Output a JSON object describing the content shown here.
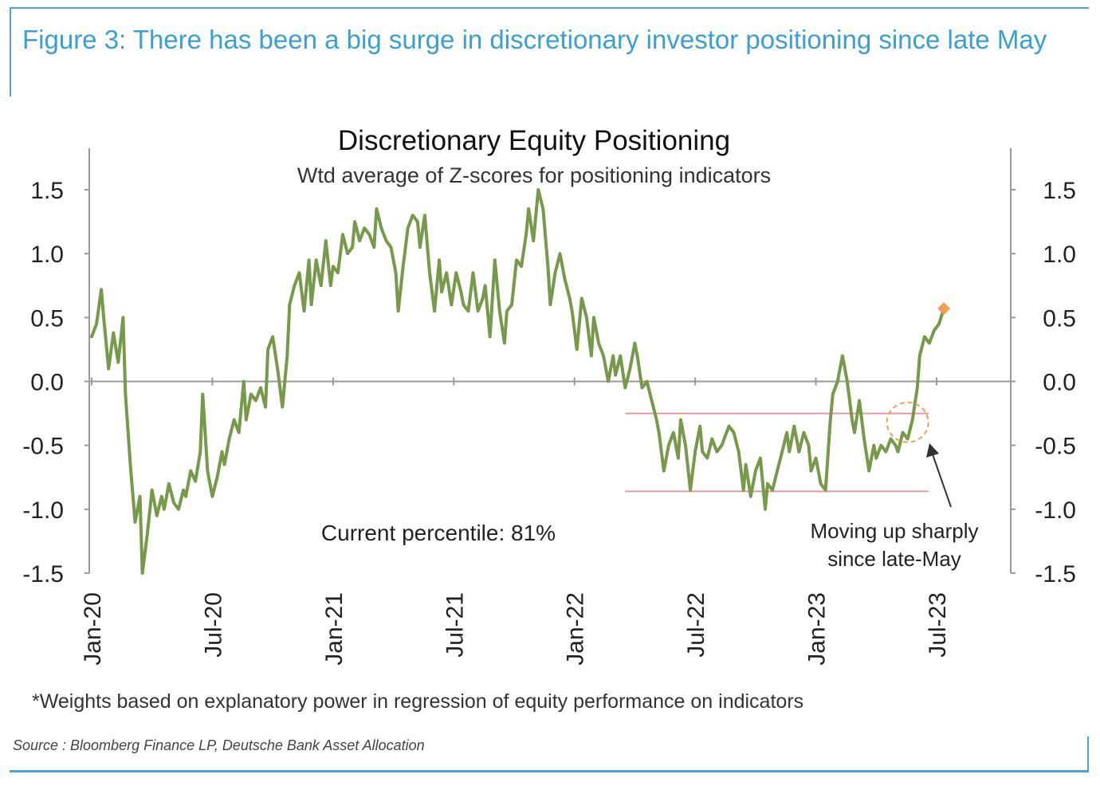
{
  "figure_title": "Figure 3: There has been a big surge in discretionary investor positioning since late May",
  "footnote": "*Weights based on explanatory power in regression of equity performance on indicators",
  "source": "Source : Bloomberg Finance LP, Deutsche Bank Asset Allocation",
  "colors": {
    "accent": "#3a9fd6",
    "line": "#76994a",
    "band": "#e39aa0",
    "marker": "#f0a050"
  },
  "chart_data": {
    "type": "line",
    "title": "Discretionary Equity Positioning",
    "subtitle": "Wtd average of Z-scores for positioning indicators",
    "ylim": [
      -1.5,
      1.5
    ],
    "yticks": [
      "1.5",
      "1.0",
      "0.5",
      "0.0",
      "-0.5",
      "-1.0",
      "-1.5"
    ],
    "ytick_values": [
      1.5,
      1.0,
      0.5,
      0.0,
      -0.5,
      -1.0,
      -1.5
    ],
    "xticks": [
      "Jan-20",
      "Jul-20",
      "Jan-21",
      "Jul-21",
      "Jan-22",
      "Jul-22",
      "Jan-23",
      "Jul-23"
    ],
    "xtick_values": [
      2020.0,
      2020.5,
      2021.0,
      2021.5,
      2022.0,
      2022.5,
      2023.0,
      2023.5
    ],
    "xlim": [
      2020.0,
      2023.5
    ],
    "dual_y_axis": true,
    "band_lines": [
      {
        "y": -0.25,
        "x_start": 2022.21,
        "x_end": 2023.5
      },
      {
        "y": -0.86,
        "x_start": 2022.21,
        "x_end": 2023.5
      }
    ],
    "annotations": [
      {
        "text": "Current percentile: 81%"
      },
      {
        "text_lines": [
          "Moving up sharply",
          "since  late-May"
        ]
      }
    ],
    "current_point": {
      "x": 2023.53,
      "y": 0.57
    },
    "highlight_circle": {
      "x": 2023.38,
      "y": -0.32
    },
    "series": [
      {
        "x": [
          2020.0,
          2020.02,
          2020.04,
          2020.05,
          2020.07,
          2020.09,
          2020.11,
          2020.13,
          2020.14,
          2020.16,
          2020.18,
          2020.2,
          2020.21,
          2020.23,
          2020.25,
          2020.27,
          2020.29,
          2020.3,
          2020.32,
          2020.34,
          2020.36,
          2020.38,
          2020.39,
          2020.41,
          2020.43,
          2020.45,
          2020.46,
          2020.48,
          2020.5,
          2020.52,
          2020.54,
          2020.55,
          2020.57,
          2020.59,
          2020.61,
          2020.63,
          2020.64,
          2020.66,
          2020.68,
          2020.7,
          2020.72,
          2020.73,
          2020.75,
          2020.77,
          2020.79,
          2020.81,
          2020.82,
          2020.84,
          2020.86,
          2020.88,
          2020.9,
          2020.91,
          2020.93,
          2020.95,
          2020.97,
          2020.99,
          2021.0,
          2021.02,
          2021.04,
          2021.06,
          2021.08,
          2021.09,
          2021.11,
          2021.13,
          2021.15,
          2021.17,
          2021.18,
          2021.2,
          2021.22,
          2021.24,
          2021.26,
          2021.27,
          2021.29,
          2021.31,
          2021.33,
          2021.35,
          2021.36,
          2021.38,
          2021.4,
          2021.42,
          2021.44,
          2021.45,
          2021.47,
          2021.49,
          2021.51,
          2021.53,
          2021.54,
          2021.56,
          2021.58,
          2021.6,
          2021.62,
          2021.63,
          2021.65,
          2021.67,
          2021.69,
          2021.71,
          2021.72,
          2021.74,
          2021.76,
          2021.78,
          2021.8,
          2021.81,
          2021.83,
          2021.85,
          2021.87,
          2021.89,
          2021.9,
          2021.92,
          2021.94,
          2021.96,
          2021.98,
          2021.99,
          2022.01,
          2022.03,
          2022.05,
          2022.07,
          2022.08,
          2022.1,
          2022.12,
          2022.14,
          2022.16,
          2022.17,
          2022.19,
          2022.21,
          2022.23,
          2022.25,
          2022.26,
          2022.28,
          2022.3,
          2022.32,
          2022.34,
          2022.35,
          2022.37,
          2022.39,
          2022.41,
          2022.43,
          2022.44,
          2022.46,
          2022.48,
          2022.5,
          2022.52,
          2022.53,
          2022.55,
          2022.57,
          2022.59,
          2022.61,
          2022.62,
          2022.64,
          2022.66,
          2022.68,
          2022.7,
          2022.71,
          2022.73,
          2022.75,
          2022.77,
          2022.79,
          2022.8,
          2022.82,
          2022.84,
          2022.86,
          2022.88,
          2022.89,
          2022.91,
          2022.93,
          2022.95,
          2022.97,
          2022.98,
          2023.0,
          2023.02,
          2023.04,
          2023.06,
          2023.07,
          2023.09,
          2023.11,
          2023.13,
          2023.15,
          2023.16,
          2023.18,
          2023.2,
          2023.22,
          2023.24,
          2023.25,
          2023.27,
          2023.29,
          2023.31,
          2023.33,
          2023.34,
          2023.36,
          2023.38,
          2023.4,
          2023.42,
          2023.43,
          2023.45,
          2023.47,
          2023.49,
          2023.51,
          2023.53
        ],
        "values": [
          0.35,
          0.45,
          0.72,
          0.5,
          0.1,
          0.38,
          0.15,
          0.5,
          -0.1,
          -0.65,
          -1.1,
          -0.9,
          -1.5,
          -1.2,
          -0.85,
          -1.05,
          -0.9,
          -1.0,
          -0.8,
          -0.95,
          -1.0,
          -0.85,
          -0.9,
          -0.7,
          -0.78,
          -0.55,
          -0.1,
          -0.7,
          -0.9,
          -0.75,
          -0.55,
          -0.65,
          -0.45,
          -0.3,
          -0.4,
          0.0,
          -0.3,
          -0.1,
          -0.15,
          -0.05,
          -0.2,
          0.25,
          0.35,
          0.1,
          -0.2,
          0.2,
          0.6,
          0.75,
          0.85,
          0.55,
          0.95,
          0.6,
          0.95,
          0.75,
          1.1,
          0.75,
          0.9,
          0.85,
          1.15,
          1.0,
          1.05,
          1.25,
          1.1,
          1.2,
          1.15,
          1.05,
          1.35,
          1.2,
          1.1,
          1.05,
          0.85,
          0.55,
          0.9,
          1.2,
          1.3,
          1.25,
          1.05,
          1.3,
          0.85,
          0.55,
          0.95,
          0.7,
          0.85,
          0.6,
          0.85,
          0.7,
          0.6,
          0.55,
          0.85,
          0.55,
          0.65,
          0.75,
          0.35,
          0.95,
          0.55,
          0.3,
          0.55,
          0.6,
          0.95,
          0.9,
          1.15,
          1.35,
          1.1,
          1.5,
          1.35,
          0.9,
          0.6,
          0.85,
          1.0,
          0.8,
          0.65,
          0.55,
          0.25,
          0.65,
          0.5,
          0.2,
          0.5,
          0.3,
          0.2,
          0.0,
          0.2,
          0.05,
          0.2,
          -0.05,
          0.1,
          0.3,
          0.2,
          -0.05,
          0.0,
          -0.15,
          -0.3,
          -0.4,
          -0.7,
          -0.5,
          -0.4,
          -0.6,
          -0.3,
          -0.5,
          -0.85,
          -0.55,
          -0.35,
          -0.55,
          -0.6,
          -0.45,
          -0.55,
          -0.5,
          -0.45,
          -0.35,
          -0.4,
          -0.55,
          -0.85,
          -0.65,
          -0.9,
          -0.7,
          -0.6,
          -1.0,
          -0.8,
          -0.85,
          -0.7,
          -0.55,
          -0.4,
          -0.55,
          -0.35,
          -0.55,
          -0.4,
          -0.5,
          -0.7,
          -0.6,
          -0.8,
          -0.85,
          -0.3,
          -0.1,
          0.0,
          0.2,
          0.0,
          -0.3,
          -0.4,
          -0.15,
          -0.45,
          -0.7,
          -0.5,
          -0.6,
          -0.5,
          -0.55,
          -0.45,
          -0.5,
          -0.55,
          -0.4,
          -0.45,
          -0.3,
          -0.05,
          0.2,
          0.35,
          0.3,
          0.4,
          0.45,
          0.57
        ]
      }
    ]
  }
}
